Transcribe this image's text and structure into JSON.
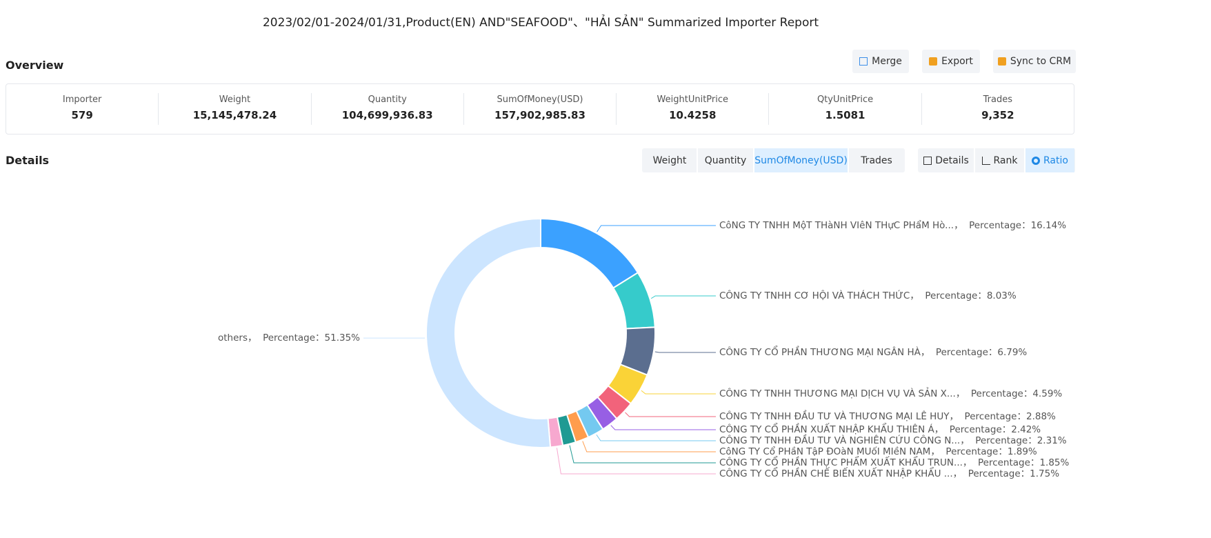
{
  "header": {
    "title": "2023/02/01-2024/01/31,Product(EN) AND\"SEAFOOD\"、\"HẢI SẢN\" Summarized Importer Report"
  },
  "overview": {
    "title": "Overview",
    "buttons": [
      "Merge",
      "Export",
      "Sync to CRM"
    ],
    "stats": [
      {
        "label": "Importer",
        "value": "579"
      },
      {
        "label": "Weight",
        "value": "15,145,478.24"
      },
      {
        "label": "Quantity",
        "value": "104,699,936.83"
      },
      {
        "label": "SumOfMoney(USD)",
        "value": "157,902,985.83"
      },
      {
        "label": "WeightUnitPrice",
        "value": "10.4258"
      },
      {
        "label": "QtyUnitPrice",
        "value": "1.5081"
      },
      {
        "label": "Trades",
        "value": "9,352"
      }
    ]
  },
  "details": {
    "title": "Details",
    "metric_tabs": [
      "Weight",
      "Quantity",
      "SumOfMoney(USD)",
      "Trades"
    ],
    "view_tabs": [
      "Details",
      "Rank",
      "Ratio"
    ]
  },
  "chart_data": {
    "type": "pie",
    "categories": [
      "CôNG TY TNHH MộT THàNH VIêN THựC PHẩM Hò...",
      "CÔNG TY TNHH CƠ HỘI VÀ THÁCH THỨC",
      "CÔNG TY CỔ PHẦN THƯƠNG MẠI NGÂN HÀ",
      "CÔNG TY TNHH THƯƠNG MẠI DỊCH VỤ VÀ SẢN X...",
      "CÔNG TY TNHH ĐẦU TƯ VÀ THƯƠNG MẠI LÊ HUY",
      "CÔNG TY CỔ PHẦN XUẤT NHẬP KHẨU THIÊN Á",
      "CÔNG TY TNHH ĐẦU TƯ VÀ NGHIÊN CỨU CÔNG N...",
      "CôNG TY Cổ PHầN TậP ĐOàN MUốI MIềN NAM",
      "CÔNG TY CỔ PHẦN THỰC PHẨM XUẤT KHẨU TRUN...",
      "CÔNG TY CỔ PHẦN CHẾ BIẾN XUẤT NHẬP KHẨU ...",
      "others"
    ],
    "values": [
      16.14,
      8.03,
      6.79,
      4.59,
      2.88,
      2.42,
      2.31,
      1.89,
      1.85,
      1.75,
      51.35
    ],
    "value_labels": [
      "16.14%",
      "8.03%",
      "6.79%",
      "4.59%",
      "2.88%",
      "2.42%",
      "2.31%",
      "1.89%",
      "1.85%",
      "1.75%",
      "51.35%"
    ],
    "label_separator": "，  Percentage：",
    "colors": [
      "#3ba1ff",
      "#36cbcb",
      "#5b6e8f",
      "#fad337",
      "#f2637b",
      "#975fe4",
      "#74c9f0",
      "#ff9d4d",
      "#1f9a93",
      "#f7a8cf",
      "#cce5ff"
    ]
  }
}
